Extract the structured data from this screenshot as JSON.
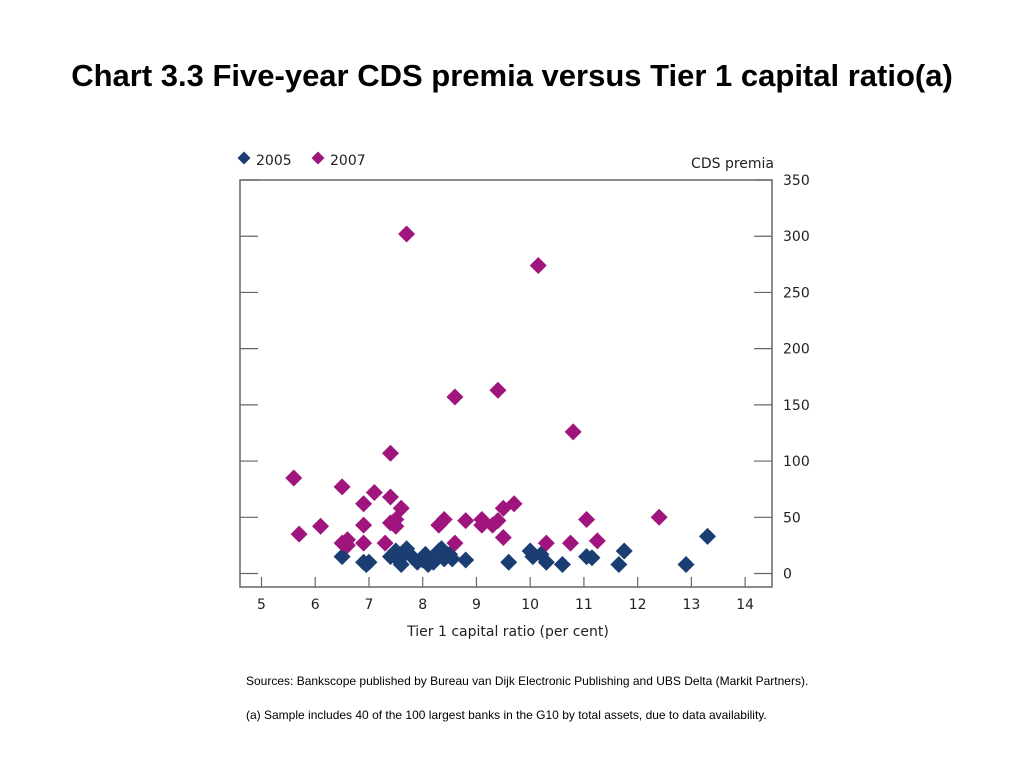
{
  "title": "Chart 3.3 Five-year CDS premia versus Tier 1 capital ratio(a)",
  "notes": {
    "sources": "Sources:  Bankscope published by Bureau van Dijk Electronic Publishing and UBS Delta (Markit Partners).",
    "footnote": "(a)  Sample includes 40 of the 100 largest banks in the G10 by total assets, due to data availability."
  },
  "chart_data": {
    "type": "scatter",
    "title": "Chart 3.3 Five-year CDS premia versus Tier 1 capital ratio(a)",
    "xlabel": "Tier 1 capital ratio (per cent)",
    "ylabel": "CDS premia",
    "xlim": [
      4.6,
      14.5
    ],
    "ylim": [
      -12,
      350
    ],
    "xticks": [
      5,
      6,
      7,
      8,
      9,
      10,
      11,
      12,
      13,
      14
    ],
    "yticks": [
      0,
      50,
      100,
      150,
      200,
      250,
      300,
      350
    ],
    "y_axis_side": "right",
    "grid": false,
    "legend_position": "top-left",
    "series": [
      {
        "name": "2005",
        "color": "#1a3e72",
        "marker": "diamond",
        "points": [
          [
            6.5,
            15
          ],
          [
            6.9,
            10
          ],
          [
            6.95,
            8
          ],
          [
            7.0,
            10
          ],
          [
            7.4,
            15
          ],
          [
            7.5,
            20
          ],
          [
            7.55,
            12
          ],
          [
            7.6,
            8
          ],
          [
            7.65,
            18
          ],
          [
            7.7,
            22
          ],
          [
            7.8,
            15
          ],
          [
            7.9,
            10
          ],
          [
            8.0,
            12
          ],
          [
            8.05,
            17
          ],
          [
            8.1,
            8
          ],
          [
            8.2,
            10
          ],
          [
            8.3,
            20
          ],
          [
            8.35,
            22
          ],
          [
            8.4,
            13
          ],
          [
            8.5,
            17
          ],
          [
            8.55,
            13
          ],
          [
            8.8,
            12
          ],
          [
            9.6,
            10
          ],
          [
            10.0,
            20
          ],
          [
            10.05,
            15
          ],
          [
            10.2,
            17
          ],
          [
            10.3,
            10
          ],
          [
            10.6,
            8
          ],
          [
            11.05,
            15
          ],
          [
            11.15,
            14
          ],
          [
            11.65,
            8
          ],
          [
            11.75,
            20
          ],
          [
            12.9,
            8
          ],
          [
            13.3,
            33
          ]
        ]
      },
      {
        "name": "2007",
        "color": "#a0157d",
        "marker": "diamond",
        "points": [
          [
            5.6,
            85
          ],
          [
            5.7,
            35
          ],
          [
            6.1,
            42
          ],
          [
            6.5,
            77
          ],
          [
            6.5,
            27
          ],
          [
            6.6,
            30
          ],
          [
            6.6,
            25
          ],
          [
            6.9,
            62
          ],
          [
            6.9,
            43
          ],
          [
            6.9,
            27
          ],
          [
            7.1,
            72
          ],
          [
            7.3,
            27
          ],
          [
            7.4,
            107
          ],
          [
            7.4,
            68
          ],
          [
            7.4,
            45
          ],
          [
            7.5,
            48
          ],
          [
            7.5,
            42
          ],
          [
            7.6,
            58
          ],
          [
            7.7,
            302
          ],
          [
            8.3,
            43
          ],
          [
            8.4,
            48
          ],
          [
            8.6,
            157
          ],
          [
            8.6,
            27
          ],
          [
            8.8,
            47
          ],
          [
            9.1,
            48
          ],
          [
            9.1,
            43
          ],
          [
            9.3,
            43
          ],
          [
            9.4,
            47
          ],
          [
            9.4,
            163
          ],
          [
            9.5,
            58
          ],
          [
            9.5,
            32
          ],
          [
            9.7,
            62
          ],
          [
            10.15,
            274
          ],
          [
            10.3,
            27
          ],
          [
            10.75,
            27
          ],
          [
            10.8,
            126
          ],
          [
            11.05,
            48
          ],
          [
            11.25,
            29
          ],
          [
            12.4,
            50
          ]
        ]
      }
    ]
  }
}
